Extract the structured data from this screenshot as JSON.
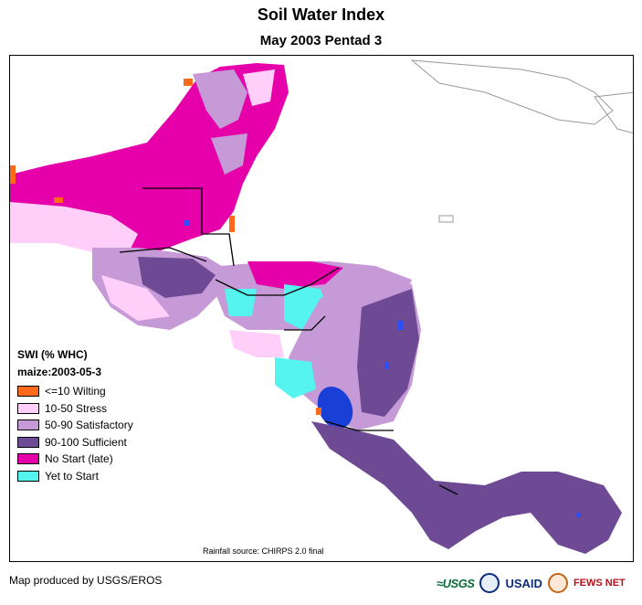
{
  "title": "Soil Water Index",
  "subtitle": "May 2003 Pentad 3",
  "legend": {
    "title": "SWI (% WHC)",
    "subtitle": "maize:2003-05-3",
    "items": [
      {
        "label": "<=10 Wilting",
        "color": "#ff6a1a"
      },
      {
        "label": "10-50 Stress",
        "color": "#ffcffa"
      },
      {
        "label": "50-90 Satisfactory",
        "color": "#c59ad6"
      },
      {
        "label": "90-100 Sufficient",
        "color": "#6e4a94"
      },
      {
        "label": "No Start (late)",
        "color": "#e600aa"
      },
      {
        "label": "Yet to Start",
        "color": "#55f4ef"
      }
    ]
  },
  "rainfall_source": "Rainfall source: CHIRPS 2.0 final",
  "credit": "Map produced by USGS/EROS",
  "logos": {
    "usgs": "≈USGS",
    "usaid": "USAID",
    "fews": "FEWS NET"
  },
  "colors": {
    "lake": "#1a3fd6",
    "water": "#2a4fff",
    "border": "#000000"
  }
}
